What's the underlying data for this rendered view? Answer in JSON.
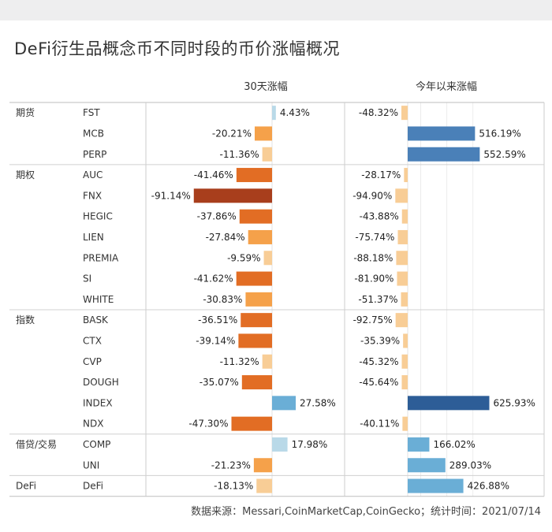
{
  "title": "DeFi衍生品概念币不同时段的币价涨幅概况",
  "footer": "数据来源：Messari,CoinMarketCap,CoinGecko；统计时间：2021/07/14",
  "chart_data": {
    "type": "bar",
    "orientation": "horizontal",
    "panels": [
      {
        "name": "30天涨幅",
        "unit": "%",
        "xlim": [
          -100,
          30
        ],
        "grid": true
      },
      {
        "name": "今年以来涨幅",
        "unit": "%",
        "xlim": [
          -100,
          700
        ],
        "grid": true
      }
    ],
    "groups": [
      "期货",
      "期权",
      "指数",
      "借贷/交易",
      "DeFi"
    ],
    "rows": [
      {
        "group": "期货",
        "label": "FST",
        "v30": 4.43,
        "vytd": -48.32
      },
      {
        "group": "期货",
        "label": "MCB",
        "v30": -20.21,
        "vytd": 516.19
      },
      {
        "group": "期货",
        "label": "PERP",
        "v30": -11.36,
        "vytd": 552.59
      },
      {
        "group": "期权",
        "label": "AUC",
        "v30": -41.46,
        "vytd": -28.17
      },
      {
        "group": "期权",
        "label": "FNX",
        "v30": -91.14,
        "vytd": -94.9
      },
      {
        "group": "期权",
        "label": "HEGIC",
        "v30": -37.86,
        "vytd": -43.88
      },
      {
        "group": "期权",
        "label": "LIEN",
        "v30": -27.84,
        "vytd": -75.74
      },
      {
        "group": "期权",
        "label": "PREMIA",
        "v30": -9.59,
        "vytd": -88.18
      },
      {
        "group": "期权",
        "label": "SI",
        "v30": -41.62,
        "vytd": -81.9
      },
      {
        "group": "期权",
        "label": "WHITE",
        "v30": -30.83,
        "vytd": -51.37
      },
      {
        "group": "指数",
        "label": "BASK",
        "v30": -36.51,
        "vytd": -92.75
      },
      {
        "group": "指数",
        "label": "CTX",
        "v30": -39.14,
        "vytd": -35.39
      },
      {
        "group": "指数",
        "label": "CVP",
        "v30": -11.32,
        "vytd": -45.32
      },
      {
        "group": "指数",
        "label": "DOUGH",
        "v30": -35.07,
        "vytd": -45.64
      },
      {
        "group": "指数",
        "label": "INDEX",
        "v30": 27.58,
        "vytd": 625.93
      },
      {
        "group": "指数",
        "label": "NDX",
        "v30": -47.3,
        "vytd": -40.11
      },
      {
        "group": "借贷/交易",
        "label": "COMP",
        "v30": 17.98,
        "vytd": 166.02
      },
      {
        "group": "借贷/交易",
        "label": "UNI",
        "v30": -21.23,
        "vytd": 289.03
      },
      {
        "group": "DeFi",
        "label": "DeFi",
        "v30": -18.13,
        "vytd": 426.88
      }
    ],
    "colors": {
      "negative_light": "#f8cd96",
      "negative_mid": "#f5a14a",
      "negative_dark": "#e26d24",
      "negative_darkest": "#a83e1c",
      "positive_light": "#b9d9e8",
      "positive_mid": "#6aaed6",
      "positive_dark": "#4a80b8",
      "positive_darkest": "#2d5d97"
    }
  }
}
